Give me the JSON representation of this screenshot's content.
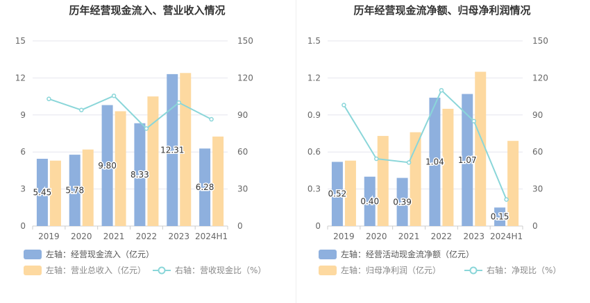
{
  "colors": {
    "bar_left": "#8eb0de",
    "bar_right": "#fdd9a0",
    "line": "#8ad6d9",
    "grid": "#e6e6ee",
    "axis_text": "#666666",
    "title_text": "#333333",
    "legend_text": "#555555",
    "legend_text_muted": "#888888"
  },
  "chart_data": [
    {
      "type": "bar",
      "title": "历年经营现金流入、营业收入情况",
      "categories": [
        "2019",
        "2020",
        "2021",
        "2022",
        "2023",
        "2024H1"
      ],
      "left_axis": {
        "ylim": [
          0,
          15
        ],
        "ticks": [
          "0",
          "3",
          "6",
          "9",
          "12",
          "15"
        ]
      },
      "right_axis": {
        "ylim": [
          0,
          150
        ],
        "ticks": [
          "0",
          "30",
          "60",
          "90",
          "120",
          "150"
        ]
      },
      "series": [
        {
          "name": "左轴：经营现金流入（亿元）",
          "kind": "bar",
          "axis": "left",
          "values": [
            5.45,
            5.78,
            9.8,
            8.33,
            12.31,
            6.28
          ],
          "labels": [
            "5.45",
            "5.78",
            "9.80",
            "8.33",
            "12.31",
            "6.28"
          ]
        },
        {
          "name": "左轴：营业总收入（亿元）",
          "kind": "bar",
          "axis": "left",
          "values": [
            5.3,
            6.2,
            9.3,
            10.5,
            12.4,
            7.25
          ]
        },
        {
          "name": "右轴：营收现金比（%）",
          "kind": "line",
          "axis": "right",
          "values": [
            103,
            94,
            105.5,
            79,
            100,
            86.5
          ]
        }
      ]
    },
    {
      "type": "bar",
      "title": "历年经营现金流净额、归母净利润情况",
      "categories": [
        "2019",
        "2020",
        "2021",
        "2022",
        "2023",
        "2024H1"
      ],
      "left_axis": {
        "ylim": [
          0,
          1.5
        ],
        "ticks": [
          "0",
          "0.3",
          "0.6",
          "0.9",
          "1.2",
          "1.5"
        ]
      },
      "right_axis": {
        "ylim": [
          0,
          150
        ],
        "ticks": [
          "0",
          "30",
          "60",
          "90",
          "120",
          "150"
        ]
      },
      "series": [
        {
          "name": "左轴：经营活动现金流净额（亿元）",
          "kind": "bar",
          "axis": "left",
          "values": [
            0.52,
            0.4,
            0.39,
            1.04,
            1.07,
            0.15
          ],
          "labels": [
            "0.52",
            "0.40",
            "0.39",
            "1.04",
            "1.07",
            "0.15"
          ]
        },
        {
          "name": "左轴：归母净利润（亿元）",
          "kind": "bar",
          "axis": "left",
          "values": [
            0.53,
            0.73,
            0.76,
            0.95,
            1.25,
            0.69
          ]
        },
        {
          "name": "右轴：净现比（%）",
          "kind": "line",
          "axis": "right",
          "values": [
            98,
            54.5,
            51.5,
            110,
            85,
            21.5
          ]
        }
      ]
    }
  ]
}
